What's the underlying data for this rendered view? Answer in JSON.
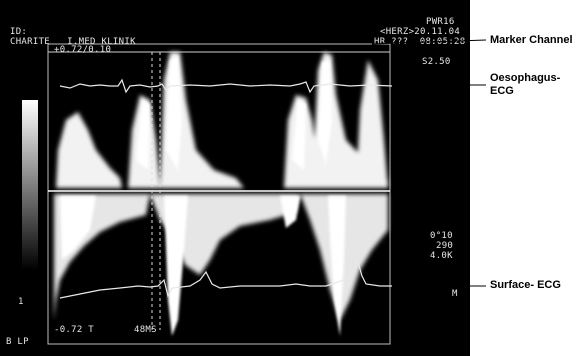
{
  "screen": {
    "header": {
      "id_label": "ID:",
      "clinic": "CHARITE   I.MED KLINIK",
      "mode": "PWR16",
      "date": "<HERZ>20.11.04",
      "hr_time": "HR ???  08:05:28"
    },
    "top_scale": "+0.72/0.10",
    "speed": "S2.50",
    "params": {
      "line1": "0°10",
      "line2": "290",
      "line3": "4.0K"
    },
    "channel_letter": "M",
    "left_marker": "1",
    "bottom_scale": "-0.72 T",
    "bottom_time": "48MS",
    "bottom_left": "B LP"
  },
  "callouts": [
    {
      "label_lines": [
        "Marker Channel"
      ]
    },
    {
      "label_lines": [
        "Oesophagus-",
        "ECG"
      ]
    },
    {
      "label_lines": [
        "Surface- ECG"
      ]
    }
  ],
  "colors": {
    "screen_bg": "#000000",
    "trace": "#e8e8e8",
    "label_text": "#000000"
  }
}
